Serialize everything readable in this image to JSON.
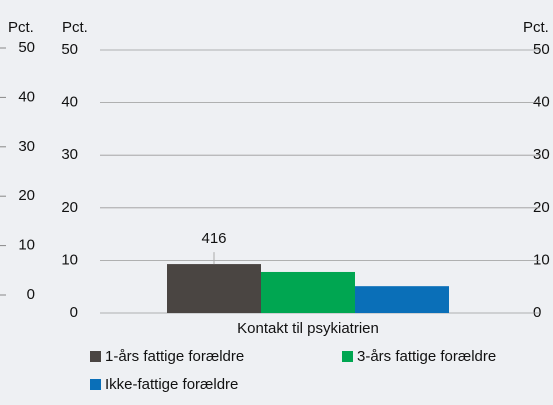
{
  "chart_data": {
    "type": "bar",
    "y_label": "Pct.",
    "categories": [
      "Kontakt til psykiatrien"
    ],
    "series": [
      {
        "name": "1-års fattige forældre",
        "color": "#4a4542",
        "values": [
          9.3
        ]
      },
      {
        "name": "3-års fattige forældre",
        "color": "#00a651",
        "values": [
          7.8
        ]
      },
      {
        "name": "Ikke-fattige forældre",
        "color": "#0a6fb8",
        "values": [
          5.1
        ]
      }
    ],
    "annotation": "416",
    "ylim": [
      0,
      50
    ],
    "yticks": [
      0,
      10,
      20,
      30,
      40,
      50
    ],
    "grid": true
  }
}
